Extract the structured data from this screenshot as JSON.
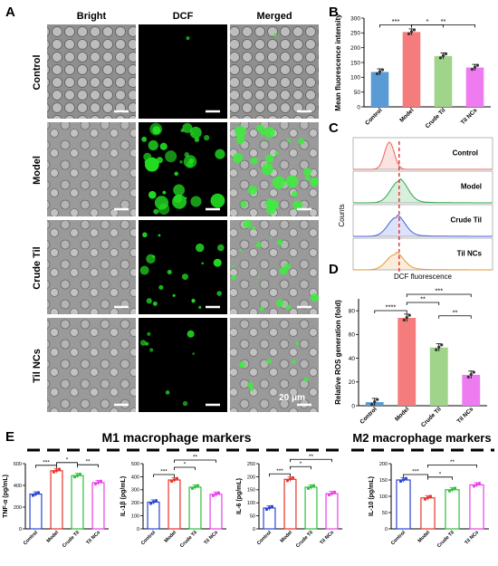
{
  "panel_letters": [
    "A",
    "B",
    "C",
    "D",
    "E"
  ],
  "micro": {
    "col_headers": [
      "Bright",
      "DCF",
      "Merged"
    ],
    "row_labels": [
      "Control",
      "Model",
      "Crude Til",
      "Til NCs"
    ],
    "scale_label": "20 μm",
    "dcf_green_level": [
      0.02,
      0.85,
      0.45,
      0.2
    ]
  },
  "panel_c": {
    "ylabel": "Counts",
    "labels": [
      "Control",
      "Model",
      "Crude Til",
      "Til NCs"
    ],
    "colors": [
      "#e8655a",
      "#2aa84a",
      "#3f5fdc",
      "#e59a33"
    ]
  },
  "m1_title": "M1 macrophage markers",
  "m2_title": "M2 macrophage markers",
  "chart_data": [
    {
      "id": "B",
      "type": "bar",
      "categories": [
        "Control",
        "Model",
        "Crude Til",
        "Til NCs"
      ],
      "values": [
        118,
        253,
        172,
        133
      ],
      "ylabel": "Mean fluorescence intensity",
      "ylim": [
        0,
        300
      ],
      "yticks": [
        0,
        50,
        100,
        150,
        200,
        250,
        300
      ],
      "colors": [
        "#5b9bd5",
        "#f47c7c",
        "#9fd48a",
        "#ee7cf0"
      ],
      "sig": [
        {
          "from": 0,
          "to": 1,
          "label": "***"
        },
        {
          "from": 1,
          "to": 2,
          "label": "*"
        },
        {
          "from": 1,
          "to": 3,
          "label": "**"
        }
      ]
    },
    {
      "id": "D",
      "type": "bar",
      "title": "DCF fluorescence",
      "categories": [
        "Control",
        "Model",
        "Crude Til",
        "Til NCs"
      ],
      "values": [
        3,
        74,
        49,
        26
      ],
      "ylabel": "Relative ROS generation (fold)",
      "ylim": [
        0,
        90
      ],
      "yticks": [
        0,
        20,
        40,
        60,
        80
      ],
      "colors": [
        "#5b9bd5",
        "#f47c7c",
        "#9fd48a",
        "#ee7cf0"
      ],
      "sig": [
        {
          "from": 0,
          "to": 1,
          "label": "****"
        },
        {
          "from": 1,
          "to": 2,
          "label": "**"
        },
        {
          "from": 1,
          "to": 3,
          "label": "***"
        },
        {
          "from": 2,
          "to": 3,
          "label": "**"
        }
      ]
    },
    {
      "id": "E1",
      "type": "bar",
      "categories": [
        "Control",
        "Model",
        "Crude Til",
        "Til NCs"
      ],
      "values": [
        320,
        535,
        490,
        425
      ],
      "ylabel": "TNF-α (pg/mL)",
      "ylim": [
        0,
        600
      ],
      "yticks": [
        0,
        200,
        400,
        600
      ],
      "colors": [
        "#2b45d4",
        "#e8332a",
        "#2fbf3a",
        "#e840e8"
      ],
      "sig": [
        {
          "from": 0,
          "to": 1,
          "label": "***"
        },
        {
          "from": 1,
          "to": 2,
          "label": "*"
        },
        {
          "from": 2,
          "to": 3,
          "label": "**"
        }
      ]
    },
    {
      "id": "E2",
      "type": "bar",
      "categories": [
        "Control",
        "Model",
        "Crude Til",
        "Til NCs"
      ],
      "values": [
        205,
        375,
        320,
        265
      ],
      "ylabel": "IL-1β (pg/mL)",
      "ylim": [
        0,
        500
      ],
      "yticks": [
        0,
        100,
        200,
        300,
        400,
        500
      ],
      "colors": [
        "#2b45d4",
        "#e8332a",
        "#2fbf3a",
        "#e840e8"
      ],
      "sig": [
        {
          "from": 0,
          "to": 1,
          "label": "***"
        },
        {
          "from": 1,
          "to": 2,
          "label": "*"
        },
        {
          "from": 1,
          "to": 3,
          "label": "**"
        }
      ]
    },
    {
      "id": "E3",
      "type": "bar",
      "categories": [
        "Control",
        "Model",
        "Crude Til",
        "Til NCs"
      ],
      "values": [
        80,
        190,
        160,
        135
      ],
      "ylabel": "IL-6 (pg/mL)",
      "ylim": [
        0,
        250
      ],
      "yticks": [
        0,
        50,
        100,
        150,
        200,
        250
      ],
      "colors": [
        "#2b45d4",
        "#e8332a",
        "#2fbf3a",
        "#e840e8"
      ],
      "sig": [
        {
          "from": 0,
          "to": 1,
          "label": "***"
        },
        {
          "from": 1,
          "to": 2,
          "label": "*"
        },
        {
          "from": 1,
          "to": 3,
          "label": "**"
        }
      ]
    },
    {
      "id": "E4",
      "type": "bar",
      "categories": [
        "Control",
        "Model",
        "Crude Til",
        "Til NCs"
      ],
      "values": [
        150,
        95,
        120,
        135
      ],
      "ylabel": "IL-10 (pg/mL)",
      "ylim": [
        0,
        200
      ],
      "yticks": [
        0,
        50,
        100,
        150,
        200
      ],
      "colors": [
        "#2b45d4",
        "#e8332a",
        "#2fbf3a",
        "#e840e8"
      ],
      "sig": [
        {
          "from": 0,
          "to": 1,
          "label": "***"
        },
        {
          "from": 1,
          "to": 2,
          "label": "*"
        },
        {
          "from": 1,
          "to": 3,
          "label": "**"
        }
      ]
    }
  ]
}
